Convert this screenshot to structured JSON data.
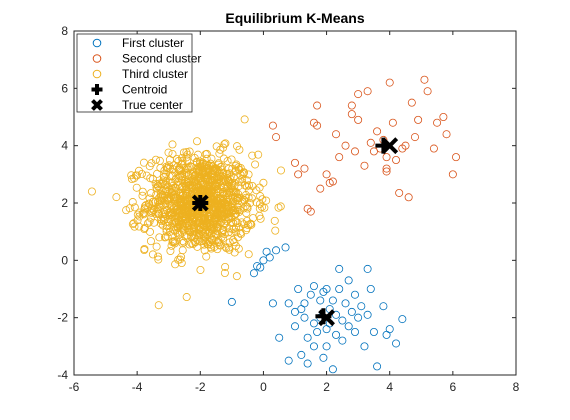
{
  "chart_data": {
    "type": "scatter",
    "title": "Equilibrium K-Means",
    "xlabel": "",
    "ylabel": "",
    "xlim": [
      -6,
      8
    ],
    "ylim": [
      -4,
      8
    ],
    "xticks": [
      "-6",
      "-4",
      "-2",
      "0",
      "2",
      "4",
      "6",
      "8"
    ],
    "yticks": [
      "-4",
      "-2",
      "0",
      "2",
      "4",
      "6",
      "8"
    ],
    "grid": false,
    "legend_position": "top-left",
    "legend": [
      {
        "label": "First cluster",
        "marker": "circle",
        "color": "#0072BD"
      },
      {
        "label": "Second cluster",
        "marker": "circle",
        "color": "#D95319"
      },
      {
        "label": "Third cluster",
        "marker": "circle",
        "color": "#EDB120"
      },
      {
        "label": "Centroid",
        "marker": "plus",
        "color": "#000000"
      },
      {
        "label": "True center",
        "marker": "x",
        "color": "#000000"
      }
    ],
    "series": [
      {
        "name": "First cluster",
        "color": "#0072BD",
        "points": [
          [
            -1.0,
            -1.45
          ],
          [
            -0.2,
            -0.2
          ],
          [
            0.0,
            0.0
          ],
          [
            0.1,
            0.3
          ],
          [
            0.4,
            0.35
          ],
          [
            0.7,
            0.45
          ],
          [
            0.2,
            0.1
          ],
          [
            -0.1,
            -0.25
          ],
          [
            -0.3,
            -0.45
          ],
          [
            0.3,
            -1.5
          ],
          [
            0.8,
            -1.5
          ],
          [
            1.0,
            -2.3
          ],
          [
            0.8,
            -3.5
          ],
          [
            1.2,
            -3.3
          ],
          [
            1.3,
            -2.0
          ],
          [
            1.0,
            -1.8
          ],
          [
            1.2,
            -1.7
          ],
          [
            1.4,
            -2.7
          ],
          [
            1.3,
            -1.5
          ],
          [
            1.5,
            -1.2
          ],
          [
            1.6,
            -2.2
          ],
          [
            1.6,
            -3.0
          ],
          [
            1.7,
            -2.5
          ],
          [
            1.8,
            -1.4
          ],
          [
            1.8,
            -2.0
          ],
          [
            1.9,
            -1.1
          ],
          [
            2.0,
            -2.4
          ],
          [
            2.0,
            -3.0
          ],
          [
            2.1,
            -1.7
          ],
          [
            2.1,
            -2.2
          ],
          [
            2.2,
            -1.4
          ],
          [
            2.3,
            -2.6
          ],
          [
            2.3,
            -1.9
          ],
          [
            2.4,
            -1.0
          ],
          [
            2.5,
            -2.1
          ],
          [
            2.5,
            -2.8
          ],
          [
            2.6,
            -1.5
          ],
          [
            2.7,
            -2.3
          ],
          [
            2.7,
            -0.7
          ],
          [
            2.8,
            -1.8
          ],
          [
            2.9,
            -2.5
          ],
          [
            2.9,
            -1.2
          ],
          [
            3.0,
            -2.0
          ],
          [
            3.1,
            -1.6
          ],
          [
            3.2,
            -3.0
          ],
          [
            3.3,
            -1.9
          ],
          [
            3.4,
            -1.0
          ],
          [
            3.5,
            -2.5
          ],
          [
            3.6,
            -3.7
          ],
          [
            3.8,
            -1.6
          ],
          [
            4.0,
            -2.4
          ],
          [
            4.2,
            -2.9
          ],
          [
            4.4,
            -2.05
          ],
          [
            1.1,
            -1.0
          ],
          [
            1.6,
            -0.9
          ],
          [
            2.4,
            -0.3
          ],
          [
            3.3,
            -0.3
          ],
          [
            1.9,
            -3.4
          ],
          [
            2.2,
            -3.8
          ],
          [
            0.5,
            -2.7
          ],
          [
            1.4,
            -3.6
          ],
          [
            3.9,
            -2.6
          ],
          [
            2.0,
            -1.0
          ]
        ]
      },
      {
        "name": "Second cluster",
        "color": "#D95319",
        "points": [
          [
            0.3,
            4.7
          ],
          [
            0.4,
            4.3
          ],
          [
            1.0,
            3.4
          ],
          [
            1.1,
            3.0
          ],
          [
            1.3,
            3.2
          ],
          [
            1.4,
            1.8
          ],
          [
            1.5,
            1.7
          ],
          [
            1.6,
            4.8
          ],
          [
            1.7,
            4.7
          ],
          [
            1.7,
            5.4
          ],
          [
            1.8,
            2.5
          ],
          [
            2.0,
            3.0
          ],
          [
            2.1,
            2.7
          ],
          [
            2.2,
            2.75
          ],
          [
            2.3,
            4.4
          ],
          [
            2.4,
            3.6
          ],
          [
            2.6,
            4.0
          ],
          [
            2.8,
            5.4
          ],
          [
            2.9,
            3.8
          ],
          [
            3.0,
            5.8
          ],
          [
            3.0,
            4.9
          ],
          [
            3.2,
            3.3
          ],
          [
            3.3,
            5.9
          ],
          [
            3.4,
            4.1
          ],
          [
            3.5,
            3.8
          ],
          [
            3.6,
            4.5
          ],
          [
            3.7,
            3.9
          ],
          [
            3.8,
            4.2
          ],
          [
            3.9,
            3.2
          ],
          [
            3.9,
            3.6
          ],
          [
            4.0,
            6.2
          ],
          [
            4.1,
            4.8
          ],
          [
            4.2,
            3.5
          ],
          [
            4.3,
            2.35
          ],
          [
            4.4,
            3.9
          ],
          [
            4.5,
            4.0
          ],
          [
            4.6,
            2.2
          ],
          [
            4.7,
            5.5
          ],
          [
            4.8,
            4.3
          ],
          [
            4.9,
            4.9
          ],
          [
            5.1,
            6.3
          ],
          [
            5.2,
            5.9
          ],
          [
            5.4,
            3.9
          ],
          [
            5.5,
            4.8
          ],
          [
            5.7,
            5.0
          ],
          [
            5.8,
            4.4
          ],
          [
            6.0,
            3.0
          ],
          [
            6.1,
            3.6
          ],
          [
            2.8,
            5.1
          ],
          [
            3.9,
            3.1
          ]
        ]
      },
      {
        "name": "Third cluster",
        "color": "#EDB120",
        "points": [],
        "generated_points": {
          "count": 1100,
          "center": [
            -2,
            2
          ],
          "spread": [
            0.85,
            0.85
          ]
        }
      },
      {
        "name": "Centroid",
        "color": "#000000",
        "marker": "plus",
        "points": [
          [
            -2.0,
            2.0
          ],
          [
            1.9,
            -1.95
          ],
          [
            3.8,
            4.0
          ]
        ]
      },
      {
        "name": "True center",
        "color": "#000000",
        "marker": "x",
        "points": [
          [
            -2.0,
            2.0
          ],
          [
            2.0,
            -2.0
          ],
          [
            4.0,
            4.0
          ]
        ]
      }
    ]
  }
}
